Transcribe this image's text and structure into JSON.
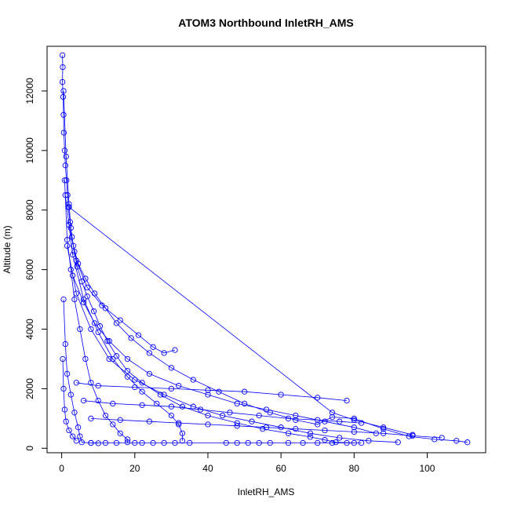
{
  "chart_data": {
    "type": "scatter",
    "title": "ATOM3 Northbound InletRH_AMS",
    "xlabel": "InletRH_AMS",
    "ylabel": "Altitude (m)",
    "xlim": [
      -4,
      116
    ],
    "ylim": [
      -150,
      13500
    ],
    "x_ticks": [
      0,
      20,
      40,
      60,
      80,
      100
    ],
    "y_ticks": [
      0,
      2000,
      4000,
      6000,
      8000,
      10000,
      12000
    ],
    "x_tick_labels": [
      "0",
      "20",
      "40",
      "60",
      "80",
      "100"
    ],
    "y_tick_labels": [
      "0",
      "2000",
      "4000",
      "6000",
      "8000",
      "10000",
      "12000"
    ],
    "grid": false,
    "legend": "none",
    "color": "#0000ff",
    "series": [
      {
        "points": [
          [
            0.2,
            13200
          ],
          [
            0.3,
            12800
          ],
          [
            0.2,
            12300
          ],
          [
            0.4,
            11800
          ],
          [
            0.5,
            11200
          ],
          [
            0.6,
            10600
          ],
          [
            0.8,
            10000
          ],
          [
            1.0,
            9500
          ],
          [
            1.3,
            9000
          ],
          [
            1.6,
            8500
          ],
          [
            1.8,
            8100
          ],
          [
            2.3,
            7600
          ],
          [
            2.8,
            7100
          ],
          [
            3.5,
            6600
          ],
          [
            4.2,
            6100
          ],
          [
            5.5,
            5600
          ],
          [
            7.0,
            5100
          ],
          [
            8.8,
            4600
          ],
          [
            10.5,
            4100
          ],
          [
            12.5,
            3600
          ],
          [
            15.0,
            3100
          ],
          [
            18.0,
            2600
          ],
          [
            22.0,
            2200
          ],
          [
            27.0,
            1800
          ],
          [
            33.0,
            1400
          ],
          [
            40.0,
            1100
          ],
          [
            48.0,
            850
          ],
          [
            55.0,
            650
          ],
          [
            62.0,
            500
          ],
          [
            68.0,
            380
          ],
          [
            72.0,
            280
          ],
          [
            75.0,
            200
          ],
          [
            80.0,
            180
          ]
        ]
      },
      {
        "points": [
          [
            0.5,
            12000
          ],
          [
            1.2,
            9800
          ],
          [
            2.0,
            8200
          ],
          [
            2.5,
            7400
          ],
          [
            3.2,
            6800
          ],
          [
            4.5,
            6200
          ],
          [
            6.5,
            5700
          ],
          [
            9.0,
            5200
          ],
          [
            12.0,
            4700
          ],
          [
            15.0,
            4200
          ],
          [
            19.0,
            3700
          ],
          [
            24.0,
            3200
          ],
          [
            30.0,
            2700
          ],
          [
            36.0,
            2300
          ],
          [
            43.0,
            1900
          ],
          [
            50.0,
            1500
          ],
          [
            57.0,
            1200
          ],
          [
            64.0,
            950
          ],
          [
            70.0,
            800
          ],
          [
            74.0,
            1050
          ],
          [
            80.0,
            1000
          ],
          [
            88.0,
            650
          ],
          [
            95.0,
            400
          ],
          [
            102.0,
            300
          ],
          [
            108.0,
            250
          ],
          [
            111.0,
            200
          ]
        ]
      },
      {
        "points": [
          [
            2.0,
            8100
          ],
          [
            74.0,
            1200
          ],
          [
            80.0,
            950
          ],
          [
            88.0,
            700
          ],
          [
            96.0,
            450
          ]
        ]
      },
      {
        "points": [
          [
            0.8,
            9000
          ],
          [
            1.5,
            7000
          ],
          [
            2.5,
            6000
          ],
          [
            3.5,
            5000
          ],
          [
            5.0,
            4000
          ],
          [
            6.5,
            3000
          ],
          [
            8.0,
            2200
          ],
          [
            10.0,
            1600
          ],
          [
            12.0,
            1100
          ],
          [
            14.0,
            800
          ],
          [
            16.0,
            500
          ],
          [
            18.0,
            300
          ],
          [
            18.0,
            200
          ]
        ]
      },
      {
        "points": [
          [
            1.0,
            8500
          ],
          [
            3.0,
            6500
          ],
          [
            6.0,
            5000
          ],
          [
            10.0,
            3900
          ],
          [
            14.0,
            3000
          ],
          [
            18.0,
            2400
          ],
          [
            22.0,
            1900
          ],
          [
            26.0,
            1500
          ],
          [
            30.0,
            1100
          ],
          [
            32.0,
            800
          ],
          [
            33.0,
            500
          ],
          [
            33.0,
            250
          ]
        ]
      },
      {
        "points": [
          [
            2.0,
            7500
          ],
          [
            4.0,
            6300
          ],
          [
            7.0,
            5400
          ],
          [
            11.0,
            4800
          ],
          [
            16.0,
            4300
          ],
          [
            21.0,
            3800
          ],
          [
            25.0,
            3400
          ],
          [
            28.0,
            3200
          ],
          [
            31.0,
            3300
          ]
        ]
      },
      {
        "points": [
          [
            0.5,
            5000
          ],
          [
            1.0,
            3500
          ],
          [
            1.5,
            2500
          ],
          [
            2.5,
            1800
          ],
          [
            3.5,
            1200
          ],
          [
            4.5,
            700
          ],
          [
            5.0,
            400
          ],
          [
            5.5,
            200
          ],
          [
            8.0,
            180
          ],
          [
            10.0,
            170
          ]
        ]
      },
      {
        "points": [
          [
            1.5,
            6800
          ],
          [
            4.0,
            5200
          ],
          [
            8.0,
            4000
          ],
          [
            13.0,
            3000
          ],
          [
            20.0,
            2300
          ],
          [
            28.0,
            1800
          ],
          [
            36.0,
            1400
          ],
          [
            44.0,
            1100
          ],
          [
            52.0,
            900
          ],
          [
            60.0,
            700
          ],
          [
            68.0,
            500
          ],
          [
            76.0,
            350
          ],
          [
            84.0,
            250
          ],
          [
            92.0,
            200
          ]
        ]
      },
      {
        "points": [
          [
            3.0,
            5800
          ],
          [
            6.0,
            4900
          ],
          [
            9.0,
            4200
          ],
          [
            13.0,
            3600
          ],
          [
            18.0,
            3000
          ],
          [
            24.0,
            2500
          ],
          [
            32.0,
            2100
          ],
          [
            40.0,
            1800
          ],
          [
            48.0,
            1500
          ],
          [
            56.0,
            1300
          ],
          [
            64.0,
            1100
          ],
          [
            72.0,
            900
          ],
          [
            80.0,
            700
          ],
          [
            86.0,
            500
          ]
        ]
      },
      {
        "points": [
          [
            4.0,
            2200
          ],
          [
            10.0,
            2100
          ],
          [
            20.0,
            2050
          ],
          [
            30.0,
            2000
          ],
          [
            40.0,
            1950
          ],
          [
            50.0,
            1900
          ],
          [
            60.0,
            1800
          ],
          [
            70.0,
            1700
          ],
          [
            78.0,
            1600
          ]
        ]
      },
      {
        "points": [
          [
            45.0,
            180
          ],
          [
            48.0,
            180
          ],
          [
            51.0,
            180
          ],
          [
            54.0,
            180
          ],
          [
            57.0,
            180
          ],
          [
            62.0,
            180
          ],
          [
            66.0,
            180
          ],
          [
            70.0,
            180
          ],
          [
            74.0,
            180
          ],
          [
            78.0,
            180
          ],
          [
            82.0,
            180
          ],
          [
            25.0,
            180
          ],
          [
            28.0,
            180
          ],
          [
            31.0,
            180
          ],
          [
            22.0,
            180
          ],
          [
            20.0,
            180
          ],
          [
            15.0,
            180
          ],
          [
            12.0,
            180
          ],
          [
            8.0,
            180
          ],
          [
            35.0,
            180
          ]
        ]
      },
      {
        "points": [
          [
            6.0,
            1600
          ],
          [
            14.0,
            1500
          ],
          [
            22.0,
            1450
          ],
          [
            30.0,
            1400
          ],
          [
            38.0,
            1300
          ],
          [
            46.0,
            1200
          ],
          [
            54.0,
            1100
          ],
          [
            62.0,
            1000
          ],
          [
            70.0,
            950
          ],
          [
            76.0,
            900
          ],
          [
            82.0,
            850
          ]
        ]
      },
      {
        "points": [
          [
            8.0,
            1000
          ],
          [
            16.0,
            950
          ],
          [
            24.0,
            900
          ],
          [
            32.0,
            850
          ],
          [
            40.0,
            800
          ],
          [
            48.0,
            750
          ],
          [
            56.0,
            700
          ],
          [
            64.0,
            650
          ],
          [
            72.0,
            600
          ],
          [
            80.0,
            550
          ],
          [
            88.0,
            500
          ],
          [
            96.0,
            420
          ],
          [
            104.0,
            350
          ]
        ]
      },
      {
        "points": [
          [
            0.3,
            3000
          ],
          [
            0.5,
            2000
          ],
          [
            0.8,
            1300
          ],
          [
            1.2,
            900
          ],
          [
            2.0,
            600
          ],
          [
            3.0,
            400
          ],
          [
            4.0,
            250
          ]
        ]
      }
    ]
  }
}
